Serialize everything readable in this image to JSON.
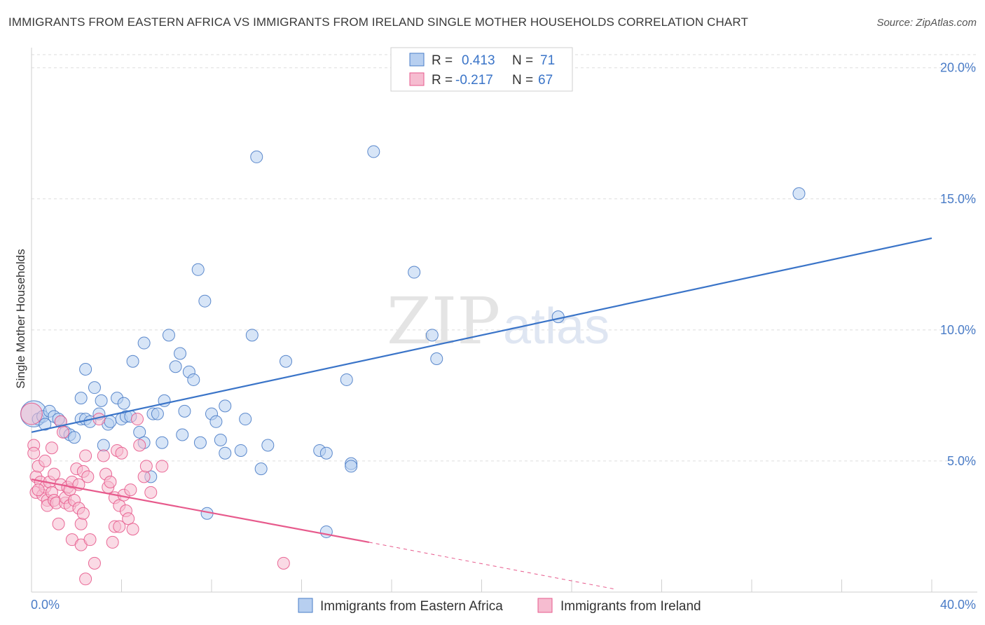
{
  "header": {
    "title": "IMMIGRANTS FROM EASTERN AFRICA VS IMMIGRANTS FROM IRELAND SINGLE MOTHER HOUSEHOLDS CORRELATION CHART",
    "source": "Source: ZipAtlas.com"
  },
  "watermark": {
    "zip": "ZIP",
    "atlas": "atlas"
  },
  "colors": {
    "blue": "#4a7cc7",
    "blue_fill": "#b7cff0",
    "blue_line": "#3a74c8",
    "pink": "#e75a8c",
    "pink_fill": "#f6bcd0",
    "grid": "#dedede"
  },
  "legend": {
    "rows": [
      {
        "r_label": "R =",
        "r_value": "0.413",
        "n_label": "N =",
        "n_value": "71"
      },
      {
        "r_label": "R =",
        "r_value": "-0.217",
        "n_label": "N =",
        "n_value": "67"
      }
    ]
  },
  "bottom_legend": {
    "items": [
      "Immigrants from Eastern Africa",
      "Immigrants from Ireland"
    ]
  },
  "chart_data": {
    "type": "scatter",
    "ylabel": "Single Mother Households",
    "xlim": [
      0,
      40
    ],
    "ylim": [
      0,
      20.5
    ],
    "x_tick_labels": [
      "0.0%",
      "40.0%"
    ],
    "y_ticks": [
      5,
      10,
      15,
      20
    ],
    "y_tick_labels": [
      "5.0%",
      "10.0%",
      "15.0%",
      "20.0%"
    ],
    "grid": true,
    "legend_position": "top-center",
    "series": [
      {
        "name": "Immigrants from Eastern Africa",
        "color": "#4a7cc7",
        "trend": {
          "x": [
            0,
            40
          ],
          "y": [
            6.1,
            13.5
          ]
        },
        "points": [
          [
            0.1,
            6.8,
            22
          ],
          [
            0.3,
            6.6,
            10
          ],
          [
            0.5,
            6.7,
            10
          ],
          [
            0.8,
            6.9,
            10
          ],
          [
            1.0,
            6.7,
            10
          ],
          [
            1.3,
            6.5,
            10
          ],
          [
            1.5,
            6.1,
            10
          ],
          [
            1.7,
            6.0,
            10
          ],
          [
            1.9,
            5.9,
            10
          ],
          [
            2.2,
            7.4,
            10
          ],
          [
            2.2,
            6.6,
            10
          ],
          [
            2.4,
            6.6,
            10
          ],
          [
            2.4,
            8.5,
            10
          ],
          [
            2.6,
            6.5,
            10
          ],
          [
            2.8,
            7.8,
            10
          ],
          [
            3.0,
            6.8,
            10
          ],
          [
            3.1,
            7.3,
            10
          ],
          [
            3.2,
            5.6,
            10
          ],
          [
            3.4,
            6.4,
            10
          ],
          [
            3.5,
            6.5,
            10
          ],
          [
            3.8,
            7.4,
            10
          ],
          [
            4.0,
            6.6,
            10
          ],
          [
            4.1,
            7.2,
            10
          ],
          [
            4.2,
            6.7,
            10
          ],
          [
            4.4,
            6.7,
            10
          ],
          [
            4.5,
            8.8,
            10
          ],
          [
            4.8,
            6.1,
            10
          ],
          [
            5.0,
            5.7,
            10
          ],
          [
            5.0,
            9.5,
            10
          ],
          [
            5.3,
            4.4,
            10
          ],
          [
            5.4,
            6.8,
            10
          ],
          [
            5.6,
            6.8,
            10
          ],
          [
            5.8,
            5.7,
            10
          ],
          [
            5.9,
            7.3,
            10
          ],
          [
            6.1,
            9.8,
            10
          ],
          [
            6.4,
            8.6,
            10
          ],
          [
            6.6,
            9.1,
            10
          ],
          [
            6.7,
            6.0,
            10
          ],
          [
            6.8,
            6.9,
            10
          ],
          [
            7.0,
            8.4,
            10
          ],
          [
            7.2,
            8.1,
            10
          ],
          [
            7.4,
            12.3,
            10
          ],
          [
            7.5,
            5.7,
            10
          ],
          [
            7.7,
            11.1,
            10
          ],
          [
            7.8,
            3.0,
            10
          ],
          [
            8.0,
            6.8,
            10
          ],
          [
            8.2,
            6.5,
            10
          ],
          [
            8.4,
            5.8,
            10
          ],
          [
            8.6,
            7.1,
            10
          ],
          [
            8.6,
            5.3,
            10
          ],
          [
            9.3,
            5.4,
            10
          ],
          [
            9.5,
            6.6,
            10
          ],
          [
            9.8,
            9.8,
            10
          ],
          [
            10.0,
            16.6,
            10
          ],
          [
            10.2,
            4.7,
            10
          ],
          [
            10.5,
            5.6,
            10
          ],
          [
            11.3,
            8.8,
            10
          ],
          [
            12.8,
            5.4,
            10
          ],
          [
            13.1,
            5.3,
            10
          ],
          [
            13.1,
            2.3,
            10
          ],
          [
            14.0,
            8.1,
            10
          ],
          [
            14.2,
            4.9,
            10
          ],
          [
            14.2,
            4.8,
            10
          ],
          [
            15.2,
            16.8,
            10
          ],
          [
            17.0,
            12.2,
            10
          ],
          [
            17.8,
            9.8,
            10
          ],
          [
            18.0,
            8.9,
            10
          ],
          [
            23.4,
            10.5,
            10
          ],
          [
            34.1,
            15.2,
            10
          ],
          [
            0.6,
            6.4,
            10
          ],
          [
            1.2,
            6.6,
            10
          ]
        ]
      },
      {
        "name": "Immigrants from Ireland",
        "color": "#e75a8c",
        "trend": {
          "x": [
            0,
            15.0
          ],
          "y": [
            4.3,
            1.9
          ]
        },
        "trend_dashed": {
          "x": [
            15.0,
            26.0
          ],
          "y": [
            1.9,
            0.1
          ]
        },
        "points": [
          [
            0.0,
            6.8,
            18
          ],
          [
            0.1,
            5.6,
            10
          ],
          [
            0.1,
            5.3,
            10
          ],
          [
            0.2,
            4.4,
            10
          ],
          [
            0.2,
            3.8,
            10
          ],
          [
            0.3,
            4.8,
            10
          ],
          [
            0.4,
            4.2,
            10
          ],
          [
            0.5,
            3.7,
            10
          ],
          [
            0.6,
            5.0,
            10
          ],
          [
            0.6,
            4.0,
            10
          ],
          [
            0.7,
            3.5,
            10
          ],
          [
            0.7,
            3.3,
            10
          ],
          [
            0.8,
            4.2,
            10
          ],
          [
            0.9,
            3.8,
            10
          ],
          [
            0.9,
            5.5,
            10
          ],
          [
            1.0,
            4.5,
            10
          ],
          [
            1.0,
            3.5,
            10
          ],
          [
            1.1,
            3.4,
            10
          ],
          [
            1.2,
            2.6,
            10
          ],
          [
            1.3,
            4.1,
            10
          ],
          [
            1.3,
            6.5,
            10
          ],
          [
            1.4,
            6.1,
            10
          ],
          [
            1.5,
            3.4,
            10
          ],
          [
            1.5,
            3.6,
            10
          ],
          [
            1.6,
            4.0,
            10
          ],
          [
            1.7,
            3.9,
            10
          ],
          [
            1.7,
            3.3,
            10
          ],
          [
            1.8,
            4.2,
            10
          ],
          [
            1.8,
            2.0,
            10
          ],
          [
            1.9,
            3.5,
            10
          ],
          [
            2.0,
            4.7,
            10
          ],
          [
            2.1,
            4.1,
            10
          ],
          [
            2.1,
            3.2,
            10
          ],
          [
            2.2,
            2.6,
            10
          ],
          [
            2.2,
            1.8,
            10
          ],
          [
            2.3,
            4.6,
            10
          ],
          [
            2.3,
            3.0,
            10
          ],
          [
            2.4,
            5.2,
            10
          ],
          [
            2.4,
            0.5,
            10
          ],
          [
            2.5,
            4.4,
            10
          ],
          [
            2.6,
            2.0,
            10
          ],
          [
            2.8,
            1.1,
            10
          ],
          [
            3.0,
            6.6,
            10
          ],
          [
            3.2,
            5.2,
            10
          ],
          [
            3.3,
            4.5,
            10
          ],
          [
            3.4,
            4.0,
            10
          ],
          [
            3.5,
            4.2,
            10
          ],
          [
            3.6,
            1.9,
            10
          ],
          [
            3.7,
            3.6,
            10
          ],
          [
            3.7,
            2.5,
            10
          ],
          [
            3.8,
            5.4,
            10
          ],
          [
            3.9,
            3.3,
            10
          ],
          [
            3.9,
            2.5,
            10
          ],
          [
            4.0,
            5.3,
            10
          ],
          [
            4.1,
            3.7,
            10
          ],
          [
            4.2,
            3.1,
            10
          ],
          [
            4.3,
            2.8,
            10
          ],
          [
            4.4,
            3.9,
            10
          ],
          [
            4.5,
            2.4,
            10
          ],
          [
            4.7,
            6.6,
            10
          ],
          [
            4.8,
            5.6,
            10
          ],
          [
            5.0,
            4.4,
            10
          ],
          [
            5.1,
            4.8,
            10
          ],
          [
            5.3,
            3.8,
            10
          ],
          [
            5.8,
            4.8,
            10
          ],
          [
            11.2,
            1.1,
            10
          ],
          [
            0.3,
            3.9,
            10
          ]
        ]
      }
    ]
  }
}
